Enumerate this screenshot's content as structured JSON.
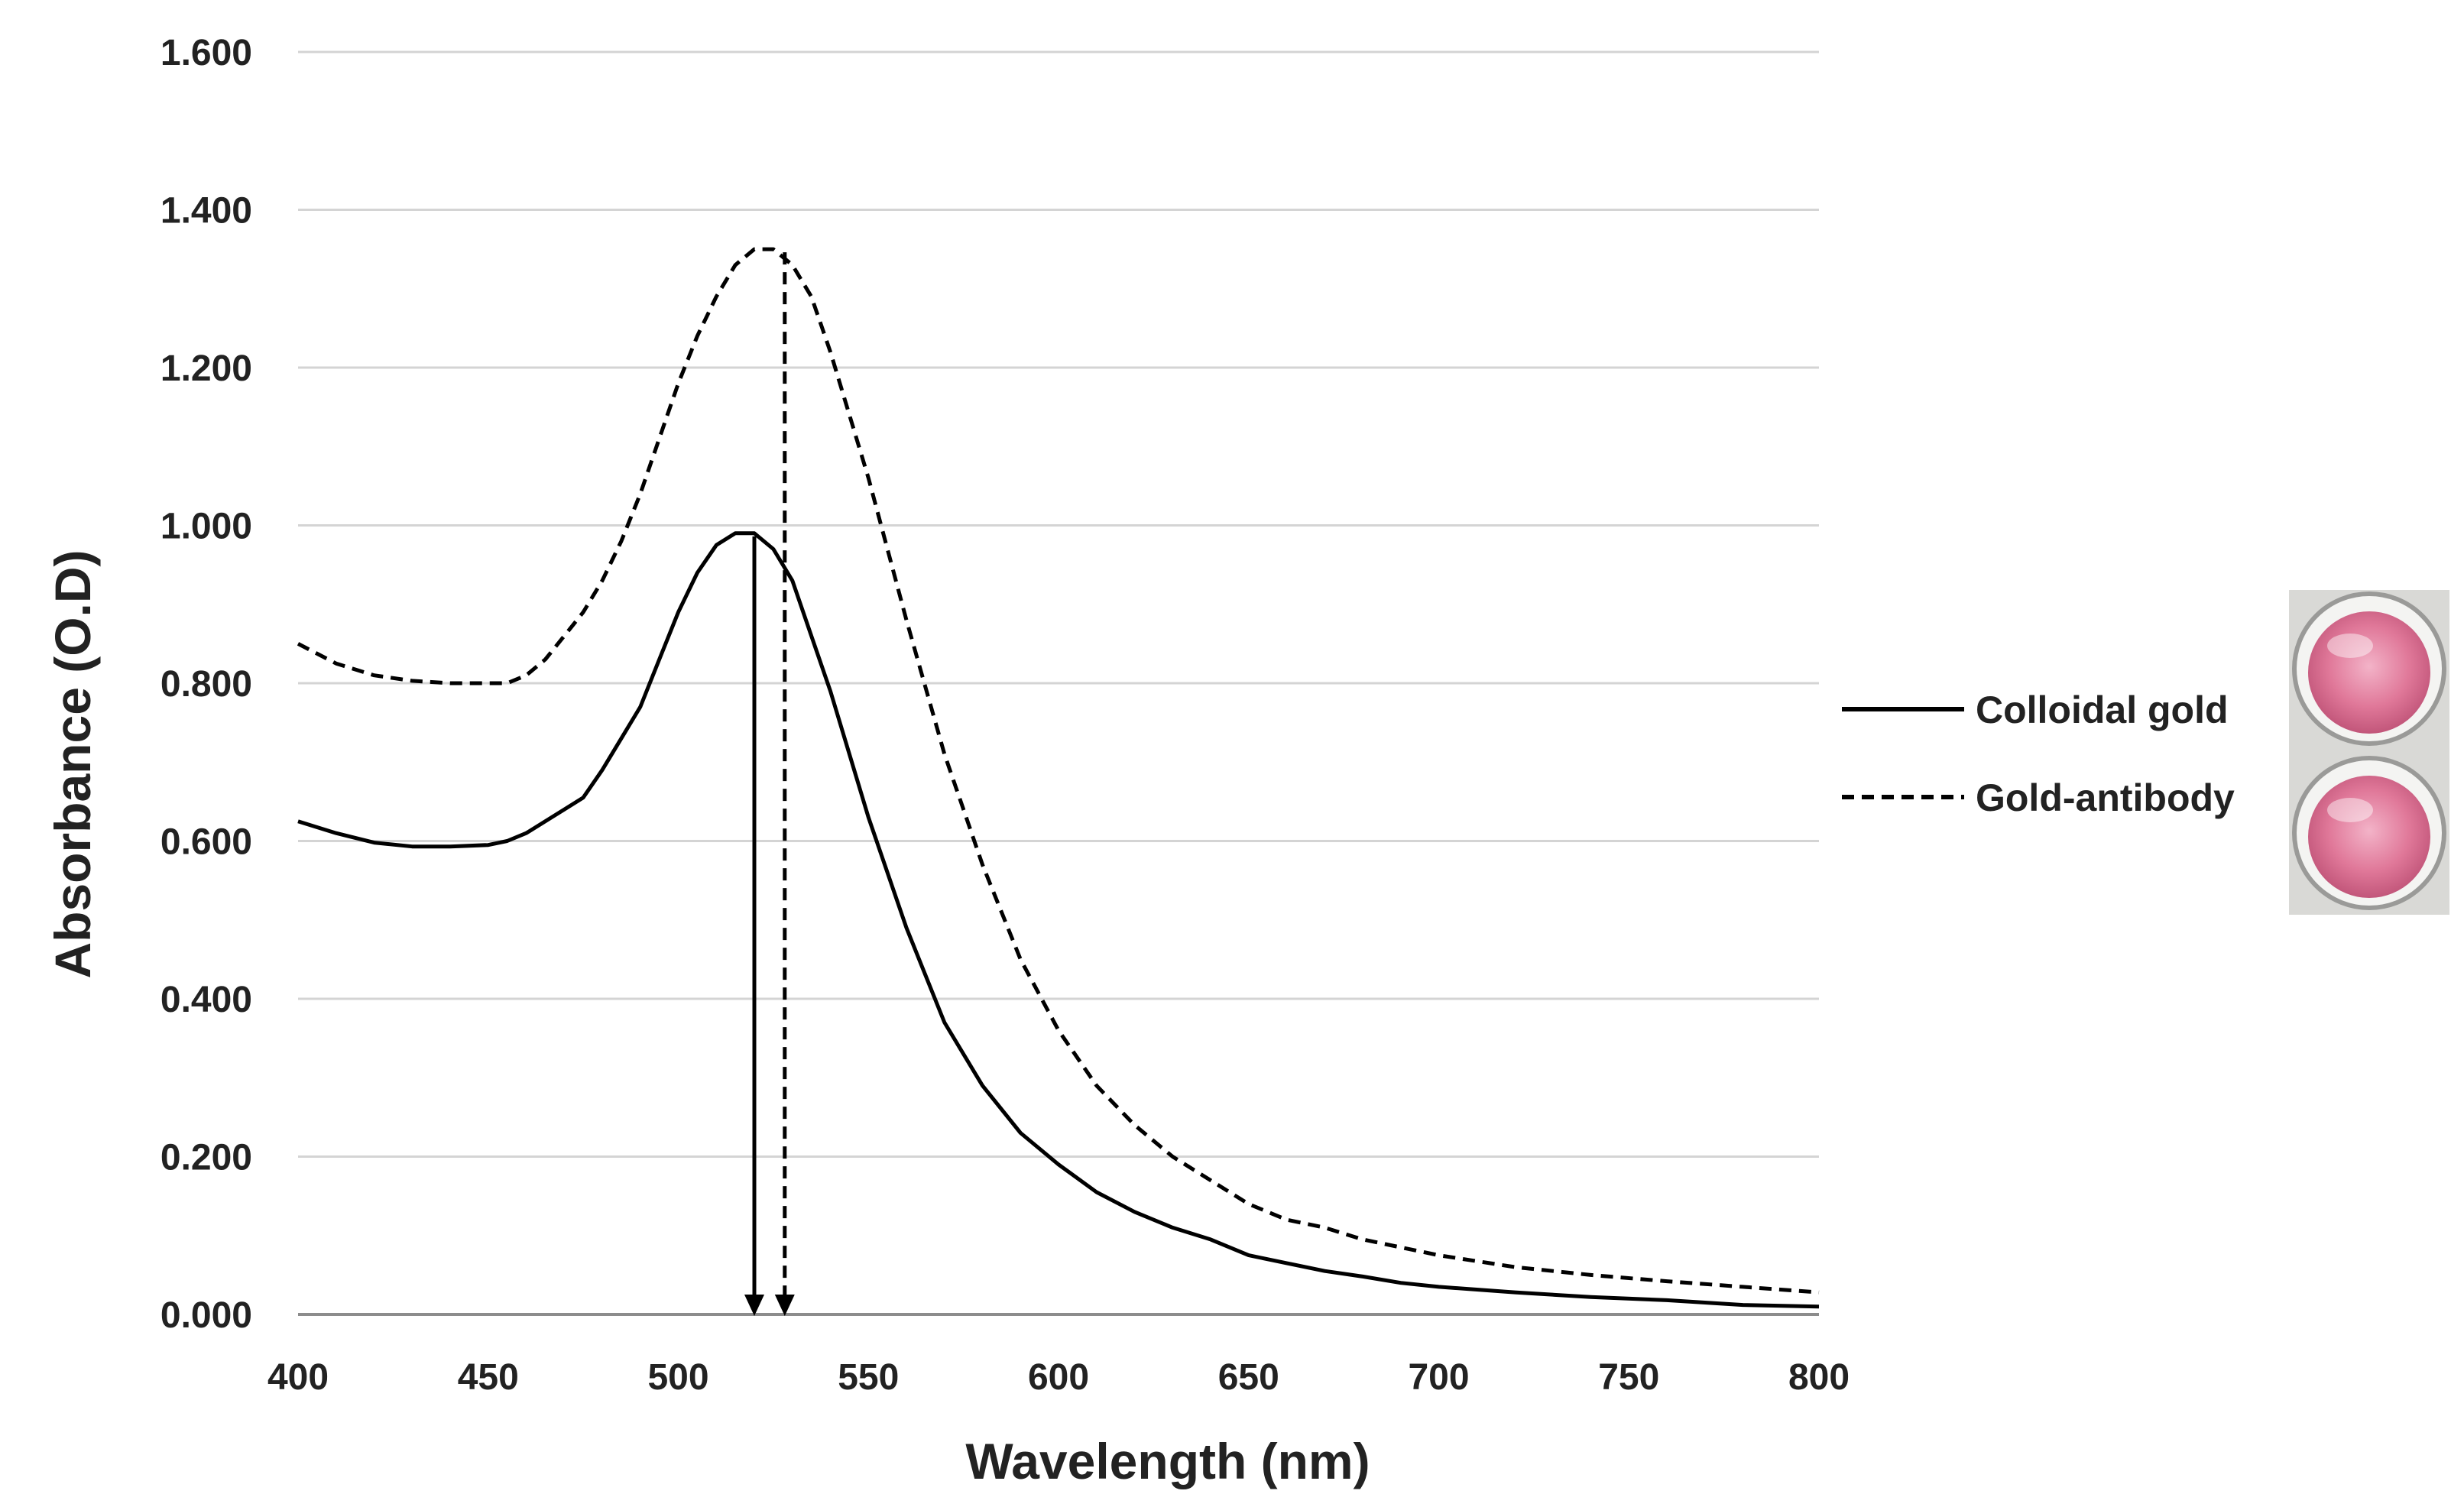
{
  "chart_data": {
    "type": "line",
    "title": "",
    "xlabel": "Wavelength (nm)",
    "ylabel": "Absorbance (O.D)",
    "xlim": [
      400,
      800
    ],
    "ylim": [
      0,
      1.6
    ],
    "xticks": [
      "400",
      "450",
      "500",
      "550",
      "600",
      "650",
      "700",
      "750",
      "800"
    ],
    "yticks": [
      "0.000",
      "0.200",
      "0.400",
      "0.600",
      "0.800",
      "1.000",
      "1.200",
      "1.400",
      "1.600"
    ],
    "ytick_values": [
      0,
      0.2,
      0.4,
      0.6,
      0.8,
      1.0,
      1.2,
      1.4,
      1.6
    ],
    "xtick_values": [
      400,
      450,
      500,
      550,
      600,
      650,
      700,
      750,
      800
    ],
    "grid": "horizontal",
    "legend_position": "right",
    "series": [
      {
        "name": "Colloidal gold",
        "style": "solid",
        "color": "#000000",
        "peak_wavelength": 520,
        "x": [
          400,
          410,
          420,
          430,
          440,
          450,
          455,
          460,
          465,
          470,
          475,
          480,
          485,
          490,
          495,
          500,
          505,
          510,
          515,
          520,
          525,
          530,
          535,
          540,
          545,
          550,
          560,
          570,
          580,
          590,
          600,
          610,
          620,
          630,
          640,
          650,
          660,
          670,
          680,
          690,
          700,
          720,
          740,
          760,
          780,
          800
        ],
        "y": [
          0.625,
          0.61,
          0.598,
          0.593,
          0.593,
          0.595,
          0.6,
          0.61,
          0.625,
          0.64,
          0.655,
          0.69,
          0.73,
          0.77,
          0.83,
          0.89,
          0.94,
          0.975,
          0.99,
          0.99,
          0.97,
          0.93,
          0.86,
          0.79,
          0.71,
          0.63,
          0.49,
          0.37,
          0.29,
          0.23,
          0.19,
          0.155,
          0.13,
          0.11,
          0.095,
          0.075,
          0.065,
          0.055,
          0.048,
          0.04,
          0.035,
          0.028,
          0.022,
          0.018,
          0.012,
          0.01
        ]
      },
      {
        "name": "Gold-antibody",
        "style": "dashed",
        "color": "#000000",
        "peak_wavelength": 528,
        "x": [
          400,
          410,
          420,
          430,
          440,
          450,
          455,
          460,
          465,
          470,
          475,
          480,
          485,
          490,
          495,
          500,
          505,
          510,
          515,
          520,
          525,
          530,
          535,
          540,
          545,
          550,
          560,
          570,
          580,
          590,
          600,
          610,
          620,
          630,
          640,
          650,
          660,
          670,
          680,
          690,
          700,
          720,
          740,
          760,
          780,
          800
        ],
        "y": [
          0.85,
          0.825,
          0.81,
          0.803,
          0.8,
          0.8,
          0.8,
          0.81,
          0.83,
          0.86,
          0.89,
          0.93,
          0.98,
          1.04,
          1.11,
          1.18,
          1.24,
          1.29,
          1.33,
          1.35,
          1.35,
          1.33,
          1.29,
          1.22,
          1.14,
          1.06,
          0.88,
          0.71,
          0.57,
          0.45,
          0.36,
          0.29,
          0.24,
          0.2,
          0.17,
          0.14,
          0.12,
          0.11,
          0.095,
          0.085,
          0.075,
          0.06,
          0.05,
          0.042,
          0.035,
          0.028
        ]
      }
    ]
  }
}
